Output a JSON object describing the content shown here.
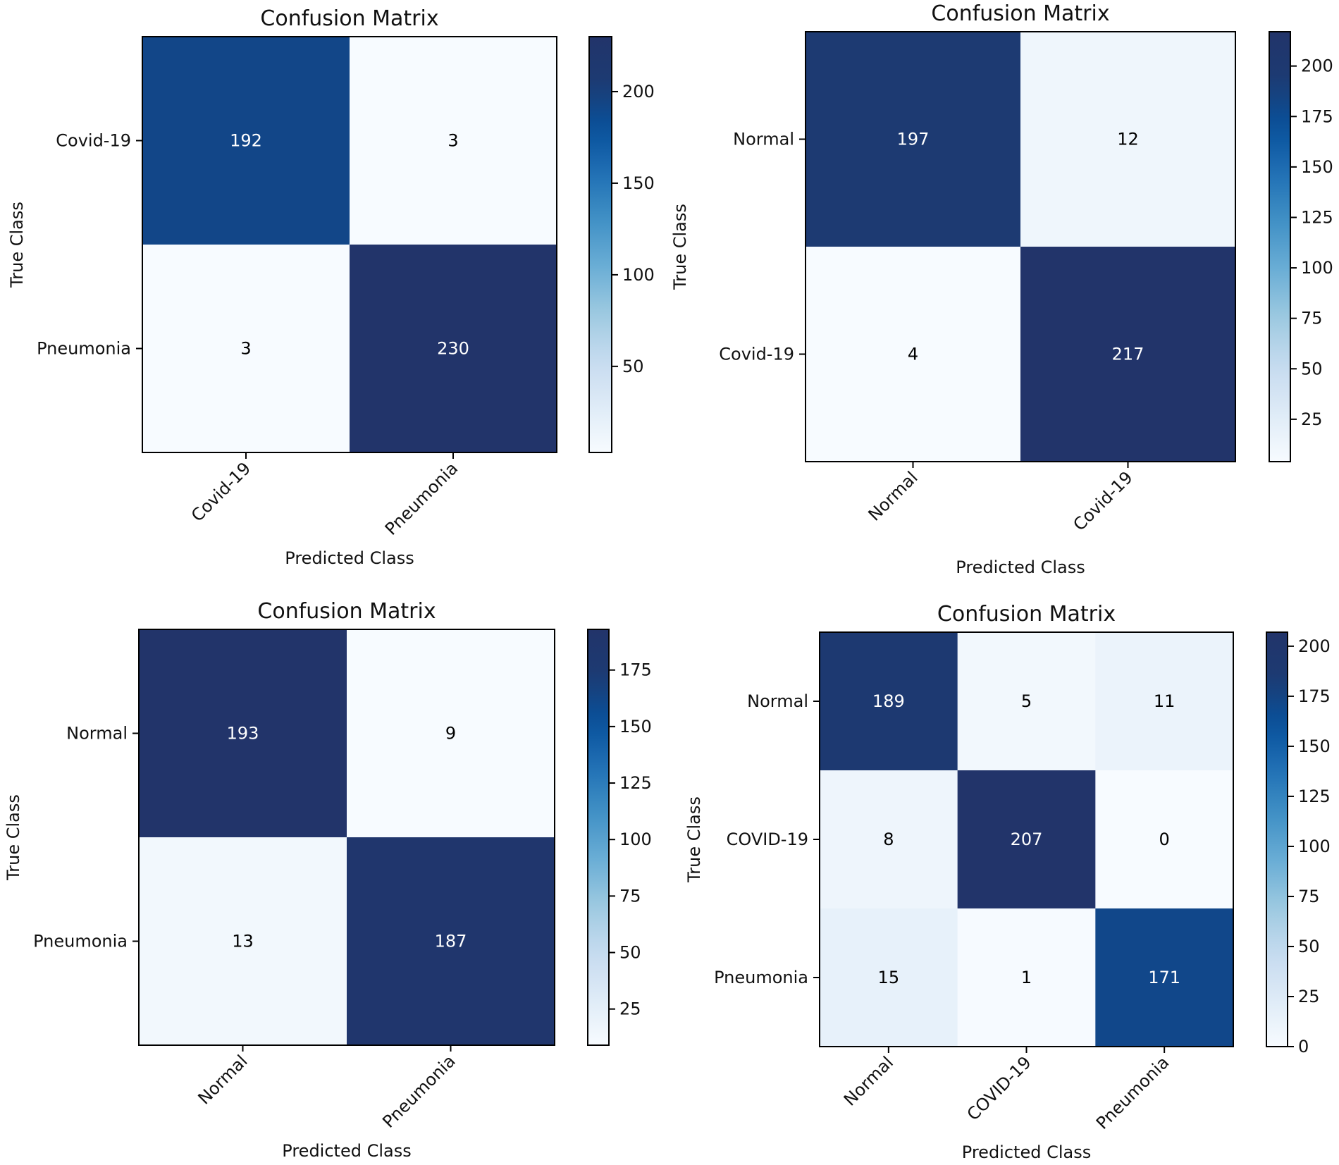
{
  "chart_data": [
    {
      "type": "heatmap",
      "title": "Confusion Matrix",
      "xlabel": "Predicted Class",
      "ylabel": "True Class",
      "x_categories": [
        "Covid-19",
        "Pneumonia"
      ],
      "y_categories": [
        "Covid-19",
        "Pneumonia"
      ],
      "values": [
        [
          192,
          3
        ],
        [
          3,
          230
        ]
      ],
      "colormap": "Blues",
      "vmin": 3,
      "vmax": 230,
      "colorbar_ticks": [
        50,
        100,
        150,
        200
      ]
    },
    {
      "type": "heatmap",
      "title": "Confusion Matrix",
      "xlabel": "Predicted Class",
      "ylabel": "True Class",
      "x_categories": [
        "Normal",
        "Covid-19"
      ],
      "y_categories": [
        "Normal",
        "Covid-19"
      ],
      "values": [
        [
          197,
          12
        ],
        [
          4,
          217
        ]
      ],
      "colormap": "Blues",
      "vmin": 4,
      "vmax": 217,
      "colorbar_ticks": [
        25,
        50,
        75,
        100,
        125,
        150,
        175,
        200
      ]
    },
    {
      "type": "heatmap",
      "title": "Confusion Matrix",
      "xlabel": "Predicted Class",
      "ylabel": "True Class",
      "x_categories": [
        "Normal",
        "Pneumonia"
      ],
      "y_categories": [
        "Normal",
        "Pneumonia"
      ],
      "values": [
        [
          193,
          9
        ],
        [
          13,
          187
        ]
      ],
      "colormap": "Blues",
      "vmin": 9,
      "vmax": 193,
      "colorbar_ticks": [
        25,
        50,
        75,
        100,
        125,
        150,
        175
      ]
    },
    {
      "type": "heatmap",
      "title": "Confusion Matrix",
      "xlabel": "Predicted Class",
      "ylabel": "True Class",
      "x_categories": [
        "Normal",
        "COVID-19",
        "Pneumonia"
      ],
      "y_categories": [
        "Normal",
        "COVID-19",
        "Pneumonia"
      ],
      "values": [
        [
          189,
          5,
          11
        ],
        [
          8,
          207,
          0
        ],
        [
          15,
          1,
          171
        ]
      ],
      "colormap": "Blues",
      "vmin": 0,
      "vmax": 207,
      "colorbar_ticks": [
        0,
        25,
        50,
        75,
        100,
        125,
        150,
        175,
        200
      ]
    }
  ],
  "colors": {
    "blues_stops": [
      "#f7fbff",
      "#deebf7",
      "#c6dbef",
      "#9ecae1",
      "#6baed6",
      "#4292c6",
      "#2171b5",
      "#08519c",
      "#1c3b73",
      "#22346a"
    ],
    "text_light": "#ffffff",
    "text_dark": "#000000",
    "axis": "#000000"
  }
}
